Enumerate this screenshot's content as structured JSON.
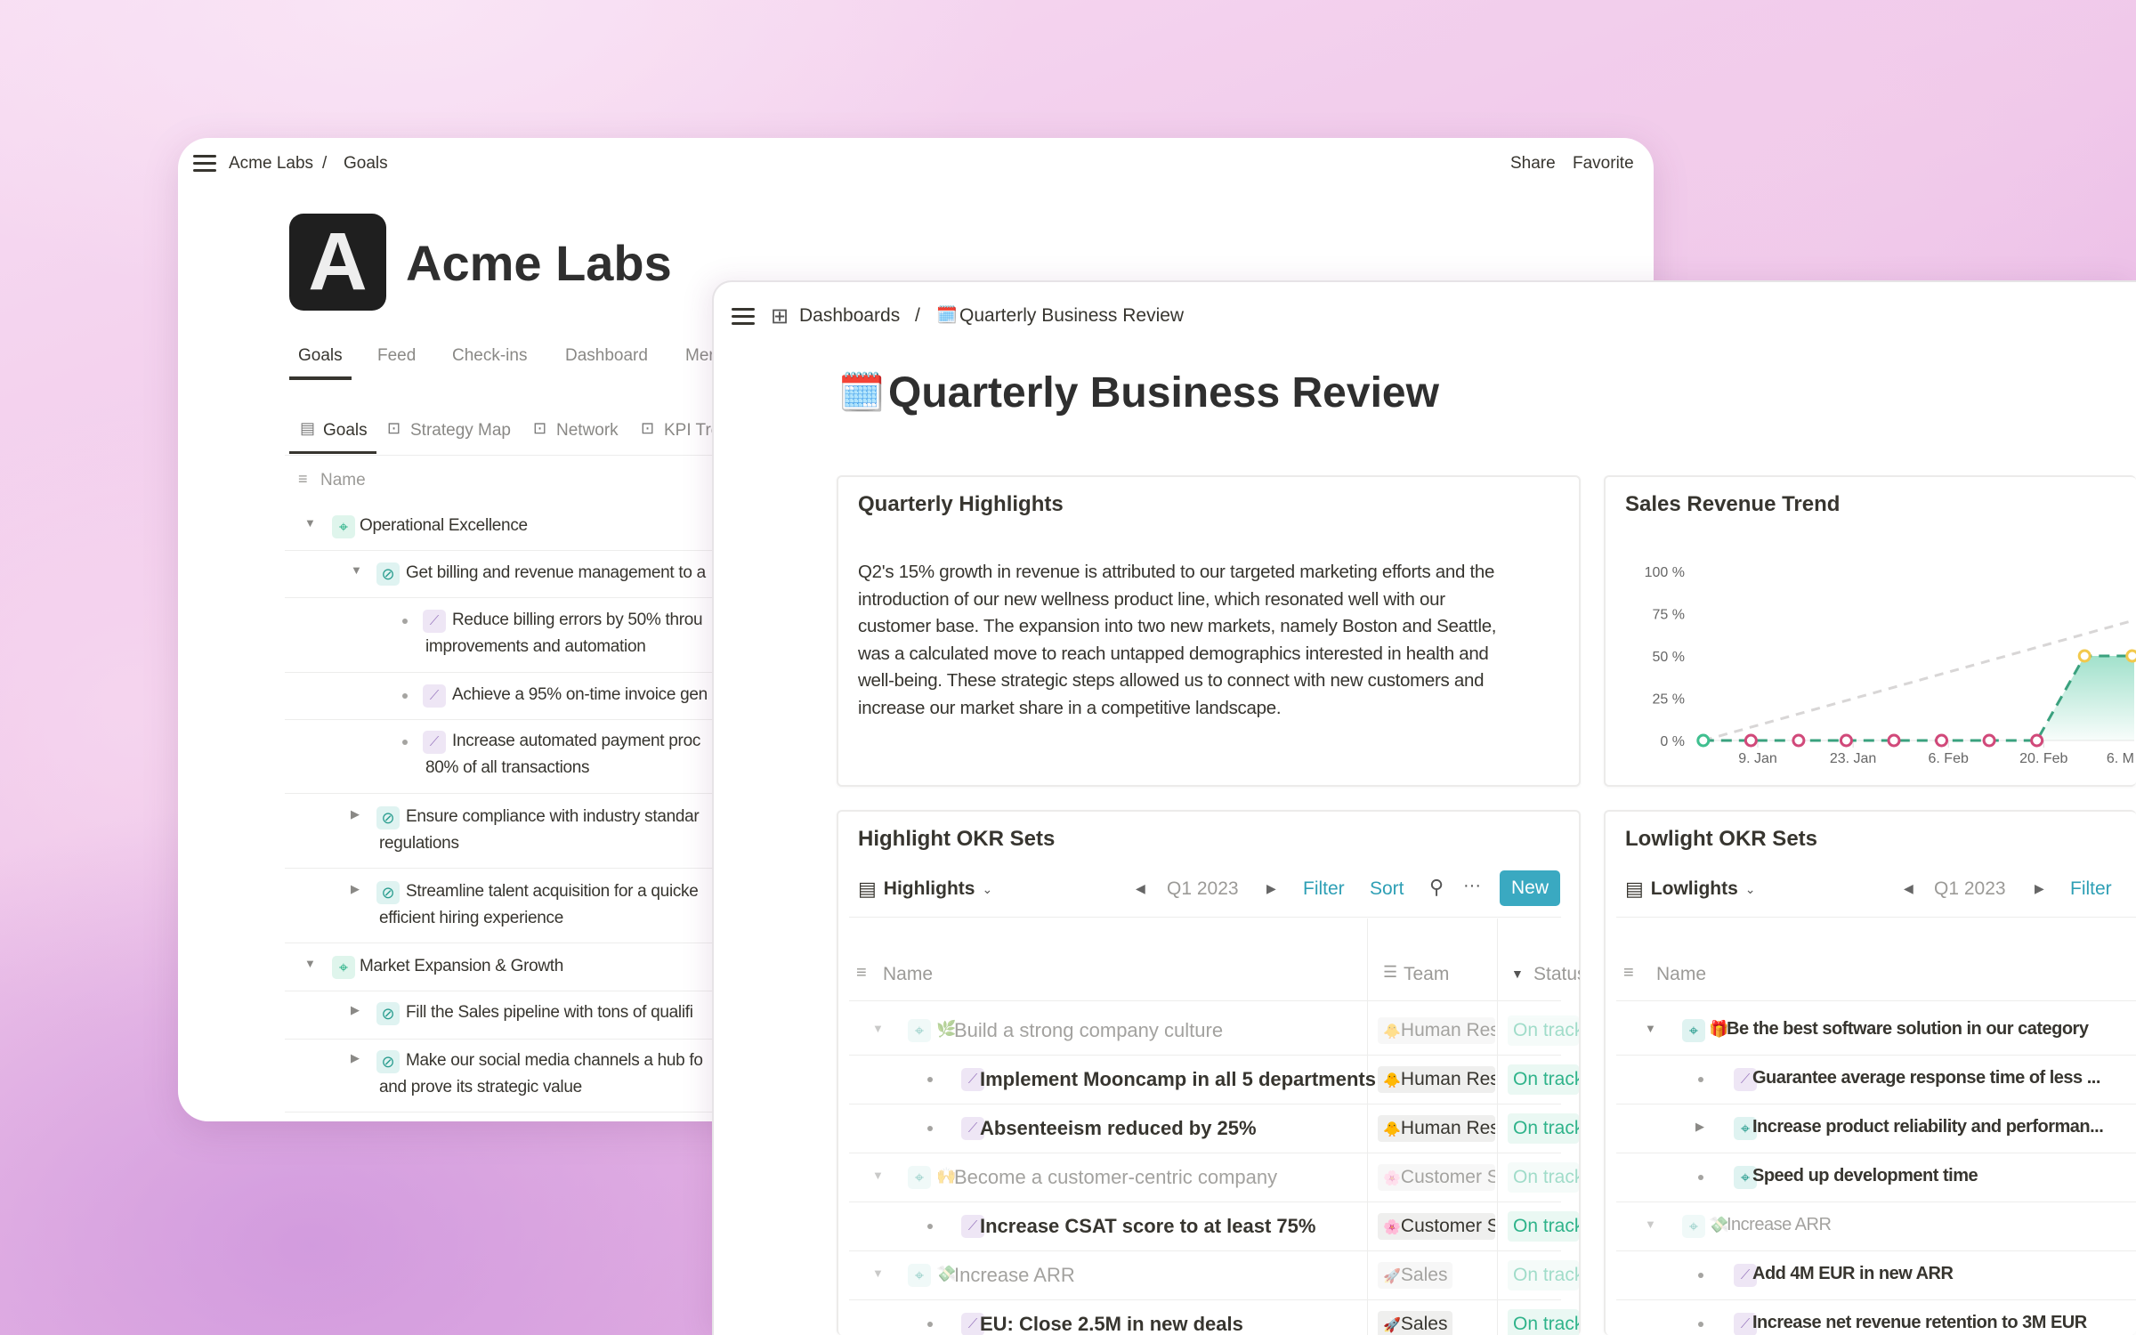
{
  "back_window": {
    "breadcrumb": [
      "Acme Labs",
      "Goals"
    ],
    "breadcrumb_separator": "/",
    "actions": {
      "share": "Share",
      "favorite": "Favorite"
    },
    "logo_letter": "A",
    "title": "Acme Labs",
    "tabs": [
      {
        "label": "Goals",
        "active": true
      },
      {
        "label": "Feed"
      },
      {
        "label": "Check-ins"
      },
      {
        "label": "Dashboard"
      },
      {
        "label": "Mer"
      }
    ],
    "views": [
      {
        "label": "Goals",
        "active": true
      },
      {
        "label": "Strategy Map"
      },
      {
        "label": "Network"
      },
      {
        "label": "KPI Tre"
      }
    ],
    "column_name": "Name",
    "rows": [
      {
        "type": "group",
        "text": "Operational Excellence"
      },
      {
        "type": "goal",
        "caret": "down",
        "text": "Get billing and revenue management to a"
      },
      {
        "type": "kr",
        "text": "Reduce billing errors by 50% throu",
        "text2": "improvements and automation"
      },
      {
        "type": "kr",
        "text": "Achieve a 95% on-time invoice gen"
      },
      {
        "type": "kr",
        "text": "Increase automated payment proc",
        "text2": "80% of all transactions"
      },
      {
        "type": "goal",
        "caret": "right",
        "text": "Ensure compliance with industry standar",
        "text2": "regulations"
      },
      {
        "type": "goal",
        "caret": "right",
        "text": "Streamline talent acquisition for a quicke",
        "text2": "efficient hiring experience"
      },
      {
        "type": "group",
        "text": "Market Expansion & Growth"
      },
      {
        "type": "goal",
        "caret": "right",
        "text": "Fill the Sales pipeline with tons of qualifi"
      },
      {
        "type": "goal",
        "caret": "right",
        "text": "Make our social media channels a hub fo",
        "text2": "and prove its strategic value"
      }
    ]
  },
  "front_window": {
    "breadcrumb": {
      "parent": "Dashboards",
      "separator": "/",
      "current": "Quarterly Business Review",
      "current_emoji": "🗓️"
    },
    "title_emoji": "🗓️",
    "title": "Quarterly Business Review",
    "highlights_card": {
      "title": "Quarterly Highlights",
      "body_lines": [
        "Q2's 15% growth in revenue is attributed to our targeted marketing efforts and the",
        "introduction of our new wellness product line, which resonated well with our",
        "customer base. The expansion into two new markets, namely Boston and Seattle,",
        "was a calculated move to reach untapped demographics interested in health and",
        "well-being. These strategic steps allowed us to connect with new customers and",
        "increase our market share in a competitive landscape."
      ]
    },
    "sales_card": {
      "title": "Sales Revenue Trend"
    },
    "highlight_okr": {
      "title": "Highlight OKR Sets",
      "view": "Highlights",
      "period": "Q1 2023",
      "filter": "Filter",
      "sort": "Sort",
      "more": "···",
      "new": "New",
      "columns": {
        "name": "Name",
        "team": "Team",
        "status": "Status"
      },
      "rows": [
        {
          "type": "objective",
          "muted": true,
          "emoji": "🌿",
          "name": "Build a strong company culture",
          "team_emoji": "🐥",
          "team": "Human Resources",
          "status": "On track"
        },
        {
          "type": "kr",
          "name": "Implement Mooncamp in all 5 departments",
          "team_emoji": "🐥",
          "team": "Human Resources",
          "status": "On track"
        },
        {
          "type": "kr",
          "name": "Absenteeism reduced by 25%",
          "team_emoji": "🐥",
          "team": "Human Resources",
          "status": "On track"
        },
        {
          "type": "objective",
          "muted": true,
          "emoji": "🙌",
          "name": "Become a customer-centric company",
          "team_emoji": "🌸",
          "team": "Customer Success",
          "status": "On track"
        },
        {
          "type": "kr",
          "name": "Increase CSAT score to at least 75%",
          "team_emoji": "🌸",
          "team": "Customer Success",
          "status": "On track"
        },
        {
          "type": "objective",
          "muted": true,
          "emoji": "💸",
          "name": "Increase ARR",
          "team_emoji": "🚀",
          "team": "Sales",
          "status": "On track"
        },
        {
          "type": "kr",
          "name": "EU: Close 2.5M in new deals",
          "team_emoji": "🚀",
          "team": "Sales",
          "status": "On track"
        }
      ]
    },
    "lowlight_okr": {
      "title": "Lowlight OKR Sets",
      "view": "Lowlights",
      "period": "Q1 2023",
      "filter": "Filter",
      "columns": {
        "name": "Name"
      },
      "rows": [
        {
          "type": "objective",
          "emoji": "🎁",
          "name": "Be the best software solution in our category"
        },
        {
          "type": "kr",
          "name": "Guarantee average response time of less ..."
        },
        {
          "type": "subobjective",
          "caret": "right",
          "name": "Increase product reliability and performan..."
        },
        {
          "type": "subobjective",
          "caret": "bullet",
          "name": "Speed up development time"
        },
        {
          "type": "objective",
          "muted": true,
          "emoji": "💸",
          "name": "Increase ARR"
        },
        {
          "type": "kr",
          "name": "Add 4M EUR in new ARR"
        },
        {
          "type": "kr",
          "name": "Increase net revenue retention to 3M EUR"
        }
      ]
    }
  },
  "colors": {
    "accent": "#2e9fb5",
    "new_button": "#3aa9c1",
    "status_green": "#2fb38a",
    "actual_line": "#3aa17e",
    "off_track_point": "#d1497a",
    "at_risk_point": "#f2c94c",
    "target_line": "#d8d6d6"
  },
  "chart_data": {
    "type": "line",
    "title": "Sales Revenue Trend",
    "y_ticks": [
      "0 %",
      "25 %",
      "50 %",
      "75 %",
      "100 %"
    ],
    "ylim": [
      0,
      100
    ],
    "x_ticks": [
      "9. Jan",
      "23. Jan",
      "6. Feb",
      "20. Feb",
      "6. M"
    ],
    "x_tick_dates": [
      "2023-01-09",
      "2023-01-23",
      "2023-02-06",
      "2023-02-20",
      "2023-03-06"
    ],
    "grid": false,
    "series": [
      {
        "style": "dashed-area",
        "points": [
          {
            "x": "2023-01-01",
            "y": 0,
            "status": "start"
          },
          {
            "x": "2023-01-08",
            "y": 0,
            "status": "off-track"
          },
          {
            "x": "2023-01-15",
            "y": 0,
            "status": "off-track"
          },
          {
            "x": "2023-01-22",
            "y": 0,
            "status": "off-track"
          },
          {
            "x": "2023-01-29",
            "y": 0,
            "status": "off-track"
          },
          {
            "x": "2023-02-05",
            "y": 0,
            "status": "off-track"
          },
          {
            "x": "2023-02-12",
            "y": 0,
            "status": "off-track"
          },
          {
            "x": "2023-02-19",
            "y": 0,
            "status": "off-track"
          },
          {
            "x": "2023-02-26",
            "y": 50,
            "status": "at-risk"
          },
          {
            "x": "2023-03-05",
            "y": 50,
            "status": "at-risk"
          }
        ]
      },
      {
        "style": "target-dashed",
        "points": [
          {
            "x": "2023-01-01",
            "y": 0
          },
          {
            "x": "2023-03-31",
            "y": 100
          }
        ]
      }
    ]
  }
}
